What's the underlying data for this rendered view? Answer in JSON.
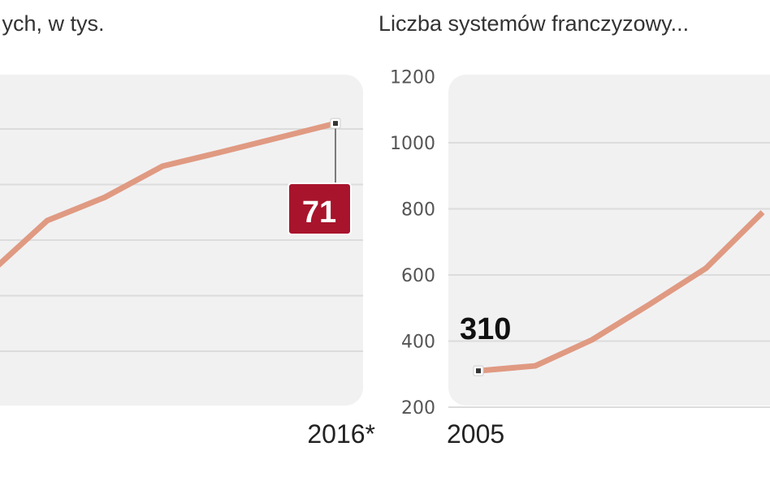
{
  "chart_data": [
    {
      "type": "line",
      "title": "...ych, w tys.",
      "x_tick_labels": [
        "2016*"
      ],
      "y_gridlines": [
        30,
        40,
        50,
        60,
        70
      ],
      "ylim": [
        25,
        80
      ],
      "grid": true,
      "line_color": "#e09a82",
      "series": [
        {
          "x": [
            2010,
            2011,
            2012,
            2013,
            2014,
            2015,
            2016
          ],
          "values": [
            44,
            53.5,
            57.7,
            63.3,
            65.8,
            68.4,
            71
          ]
        }
      ],
      "annotations": [
        {
          "x": 2016,
          "label": "71",
          "color": "#a8142c"
        }
      ]
    },
    {
      "type": "line",
      "title": "Liczba systemów franczyzowy...",
      "x_tick_labels": [
        "2005"
      ],
      "y_tick_labels": [
        "1200",
        "1000",
        "800",
        "600",
        "400",
        "200"
      ],
      "ylim": [
        200,
        1200
      ],
      "grid": true,
      "line_color": "#e09a82",
      "series": [
        {
          "x": [
            2005,
            2006,
            2007,
            2008,
            2009,
            2010
          ],
          "values": [
            310,
            325,
            404,
            510,
            620,
            790
          ]
        }
      ],
      "annotations": [
        {
          "x": 2005,
          "label": "310"
        }
      ]
    }
  ]
}
